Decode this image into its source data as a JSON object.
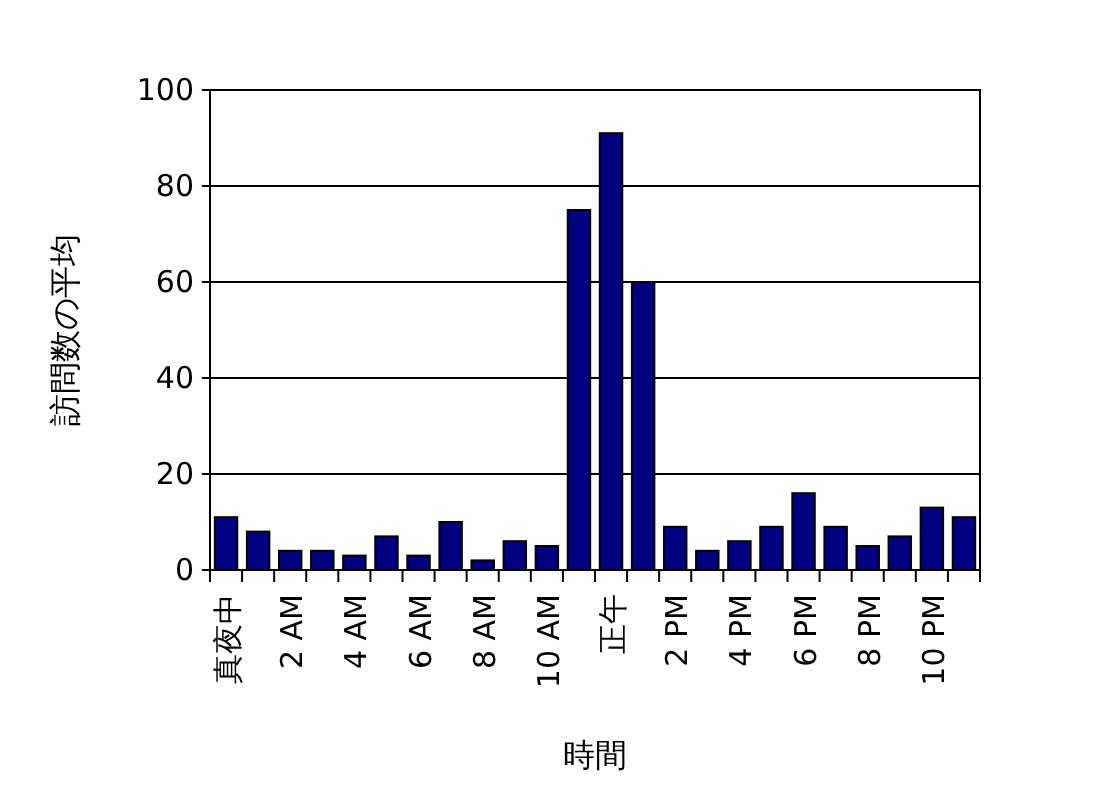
{
  "chart_data": {
    "type": "bar",
    "xlabel": "時間",
    "ylabel": "訪問数の平均",
    "categories": [
      "真夜中",
      null,
      "2 AM",
      null,
      "4 AM",
      null,
      "6 AM",
      null,
      "8 AM",
      null,
      "10 AM",
      null,
      "正午",
      null,
      "2 PM",
      null,
      "4 PM",
      null,
      "6 PM",
      null,
      "8 PM",
      null,
      "10 PM",
      null
    ],
    "values": [
      11,
      8,
      4,
      4,
      3,
      7,
      3,
      10,
      2,
      6,
      5,
      75,
      91,
      60,
      9,
      4,
      6,
      9,
      16,
      9,
      5,
      7,
      13,
      11
    ],
    "color": "#000080",
    "ylim": [
      0,
      100
    ],
    "yticks": [
      0,
      20,
      40,
      60,
      80,
      100
    ],
    "grid": "y"
  }
}
